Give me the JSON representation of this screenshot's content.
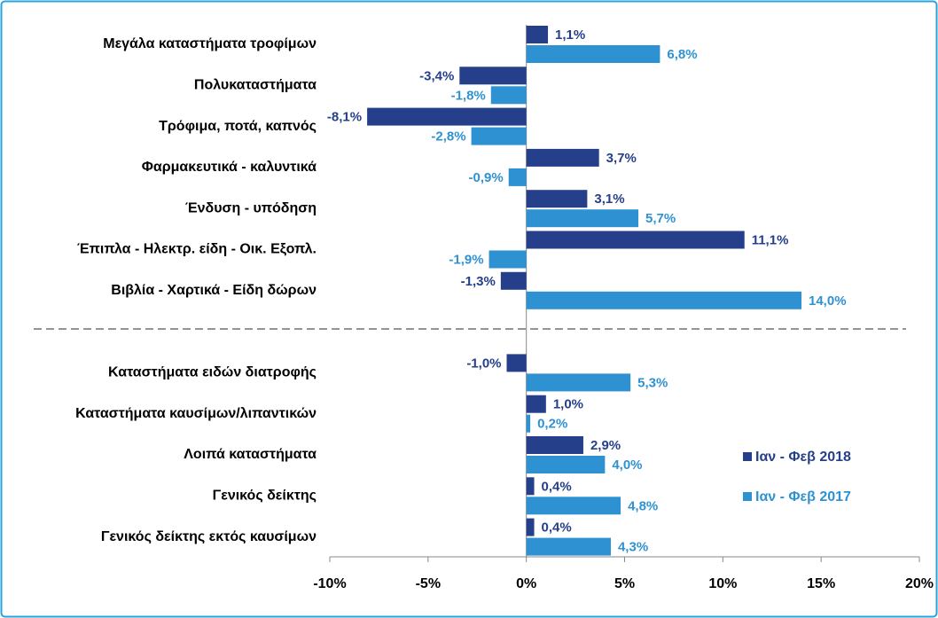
{
  "chart_data": {
    "type": "hbar",
    "categories": [
      "Μεγάλα καταστήματα τροφίμων",
      "Πολυκαταστήματα",
      "Τρόφιμα, ποτά, καπνός",
      "Φαρμακευτικά - καλυντικά",
      "Ένδυση - υπόδηση",
      "Έπιπλα - Ηλεκτρ. είδη - Οικ. Εξοπλ.",
      "Βιβλία - Χαρτικά - Είδη δώρων",
      "Καταστήματα ειδών διατροφής",
      "Καταστήματα καυσίμων/λιπαντικών",
      "Λοιπά καταστήματα",
      "Γενικός δείκτης",
      "Γενικός δείκτης εκτός καυσίμων"
    ],
    "series": [
      {
        "name": "Ιαν - Φεβ 2018",
        "color": "#253f8a",
        "values": [
          1.1,
          -3.4,
          -8.1,
          3.7,
          3.1,
          11.1,
          -1.3,
          -1.0,
          1.0,
          2.9,
          0.4,
          0.4
        ],
        "value_labels": [
          "1,1%",
          "-3,4%",
          "-8,1%",
          "3,7%",
          "3,1%",
          "11,1%",
          "-1,3%",
          "-1,0%",
          "1,0%",
          "2,9%",
          "0,4%",
          "0,4%"
        ]
      },
      {
        "name": "Ιαν - Φεβ 2017",
        "color": "#2e92d2",
        "values": [
          6.8,
          -1.8,
          -2.8,
          -0.9,
          5.7,
          -1.9,
          14.0,
          5.3,
          0.2,
          4.0,
          4.8,
          4.3
        ],
        "value_labels": [
          "6,8%",
          "-1,8%",
          "-2,8%",
          "-0,9%",
          "5,7%",
          "-1,9%",
          "14,0%",
          "5,3%",
          "0,2%",
          "4,0%",
          "4,8%",
          "4,3%"
        ]
      }
    ],
    "xlim": [
      -10,
      20
    ],
    "xticks": [
      {
        "value": -10,
        "label": "-10%"
      },
      {
        "value": -5,
        "label": "-5%"
      },
      {
        "value": 0,
        "label": "0%"
      },
      {
        "value": 5,
        "label": "5%"
      },
      {
        "value": 10,
        "label": "10%"
      },
      {
        "value": 15,
        "label": "15%"
      },
      {
        "value": 20,
        "label": "20%"
      }
    ],
    "legend": "right"
  }
}
